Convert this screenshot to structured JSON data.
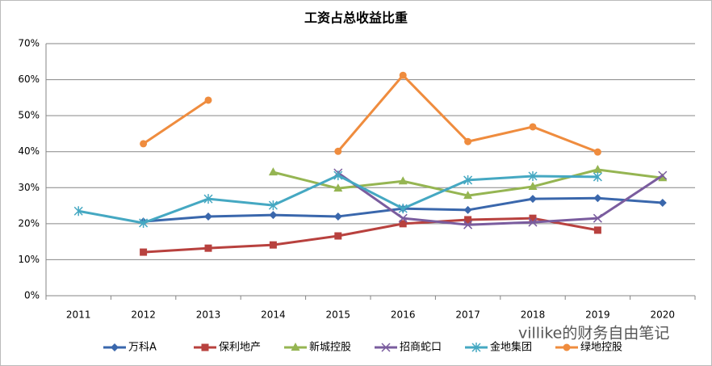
{
  "chart_data": {
    "type": "line",
    "title": "工资占总收益比重",
    "categories": [
      "2011",
      "2012",
      "2013",
      "2014",
      "2015",
      "2016",
      "2017",
      "2018",
      "2019",
      "2020"
    ],
    "ylim": [
      0,
      70
    ],
    "yticks": [
      {
        "value": 0,
        "label": "0%"
      },
      {
        "value": 10,
        "label": "10%"
      },
      {
        "value": 20,
        "label": "20%"
      },
      {
        "value": 30,
        "label": "30%"
      },
      {
        "value": 40,
        "label": "40%"
      },
      {
        "value": 50,
        "label": "50%"
      },
      {
        "value": 60,
        "label": "60%"
      },
      {
        "value": 70,
        "label": "70%"
      }
    ],
    "grid": true,
    "legend": "bottom",
    "series": [
      {
        "name": "万科A",
        "color": "#3a67ac",
        "marker": "diamond",
        "values": [
          null,
          20.6,
          22.0,
          22.4,
          22.0,
          24.2,
          23.8,
          26.9,
          27.1,
          25.8
        ]
      },
      {
        "name": "保利地产",
        "color": "#b8413e",
        "marker": "square",
        "values": [
          null,
          12.1,
          13.2,
          14.1,
          16.6,
          20.0,
          21.1,
          21.5,
          18.2,
          null
        ]
      },
      {
        "name": "新城控股",
        "color": "#95b552",
        "marker": "triangle",
        "values": [
          null,
          null,
          null,
          34.3,
          29.8,
          31.8,
          27.8,
          30.3,
          35.0,
          32.7
        ]
      },
      {
        "name": "招商蛇口",
        "color": "#7a5c9e",
        "marker": "x",
        "values": [
          null,
          null,
          null,
          null,
          34.1,
          21.5,
          19.7,
          20.4,
          21.5,
          33.4
        ]
      },
      {
        "name": "金地集团",
        "color": "#45a8c2",
        "marker": "star",
        "values": [
          23.5,
          20.2,
          26.9,
          25.1,
          33.4,
          24.2,
          32.1,
          33.2,
          33.0,
          null
        ]
      },
      {
        "name": "绿地控股",
        "color": "#ef8c3e",
        "marker": "circle",
        "values": [
          null,
          42.2,
          54.3,
          null,
          40.1,
          61.2,
          42.8,
          46.9,
          39.9,
          null
        ]
      }
    ],
    "watermark": "villike的财务自由笔记"
  }
}
